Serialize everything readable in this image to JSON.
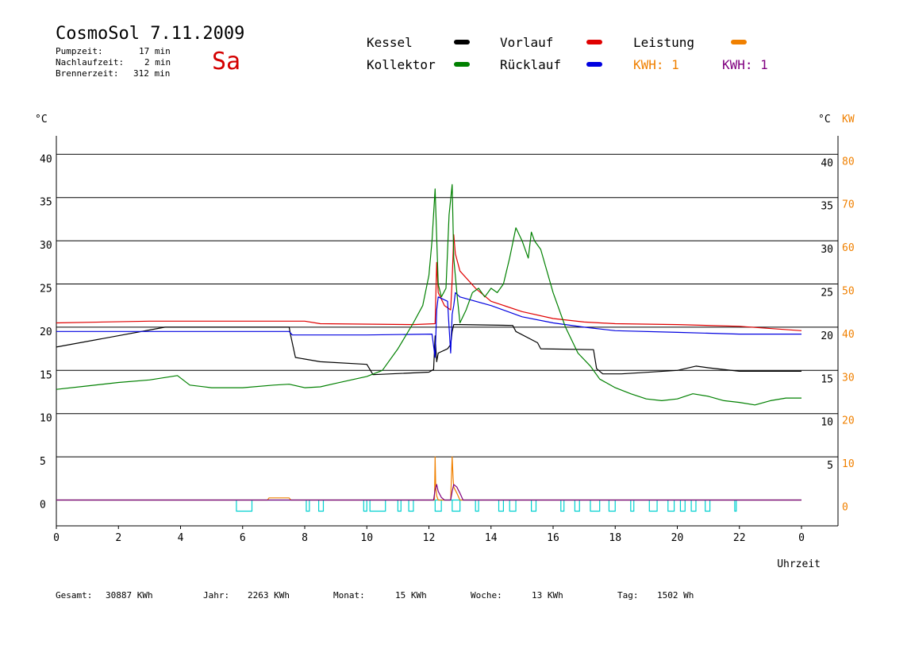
{
  "header": {
    "title": "CosmoSol 7.11.2009",
    "day": "Sa",
    "info": [
      {
        "label": "Pumpzeit:",
        "value": "17 min"
      },
      {
        "label": "Nachlaufzeit:",
        "value": "2 min"
      },
      {
        "label": "Brennerzeit:",
        "value": "312 min"
      }
    ]
  },
  "legend": [
    {
      "label": "Kessel",
      "color": "#000000"
    },
    {
      "label": "Vorlauf",
      "color": "#e00000"
    },
    {
      "label": "Leistung",
      "color": "#f08000"
    },
    {
      "label": "Kollektor",
      "color": "#008000"
    },
    {
      "label": "Rücklauf",
      "color": "#0000e0"
    }
  ],
  "kwh": [
    {
      "text": "KWH: 1",
      "color": "#f08000"
    },
    {
      "text": "KWH: 1",
      "color": "#800080"
    }
  ],
  "footer": [
    {
      "label": "Gesamt:",
      "value": "30887 KWh"
    },
    {
      "label": "Jahr:",
      "value": "2263 KWh"
    },
    {
      "label": "Monat:",
      "value": "15 KWh"
    },
    {
      "label": "Woche:",
      "value": "13 KWh"
    },
    {
      "label": "Tag:",
      "value": "1502 Wh"
    }
  ],
  "chart_data": {
    "type": "line",
    "xlabel": "Uhrzeit",
    "x_ticks": [
      "0",
      "2",
      "4",
      "6",
      "8",
      "10",
      "12",
      "14",
      "16",
      "18",
      "20",
      "22",
      "0"
    ],
    "xlim": [
      0,
      24
    ],
    "y_left_unit": "°C",
    "y_right_unit": "°C",
    "y_right2_unit": "KW",
    "ylim": [
      -3,
      45
    ],
    "y_left_ticks": [
      "0",
      "5",
      "10",
      "15",
      "20",
      "25",
      "30",
      "35",
      "40"
    ],
    "y_right_ticks": [
      "5",
      "10",
      "15",
      "20",
      "25",
      "30",
      "35",
      "40"
    ],
    "y_right2_ticks": [
      "0",
      "10",
      "20",
      "30",
      "40",
      "50",
      "60",
      "70",
      "80"
    ],
    "grid": true,
    "series": [
      {
        "name": "Kessel",
        "color": "#000000",
        "x": [
          0,
          3.5,
          7.5,
          7.55,
          7.7,
          8.5,
          10,
          10.2,
          12,
          12.15,
          12.2,
          12.25,
          12.3,
          12.6,
          12.7,
          12.75,
          12.8,
          13,
          14.7,
          14.8,
          15.5,
          15.6,
          17.3,
          17.4,
          17.6,
          18.2,
          20,
          20.6,
          21,
          22,
          24
        ],
        "y": [
          17.7,
          20.0,
          20.0,
          19.0,
          16.5,
          16.0,
          15.7,
          14.5,
          14.8,
          15.1,
          19.0,
          16.0,
          17.0,
          17.5,
          18.0,
          19.5,
          20.3,
          20.3,
          20.2,
          19.5,
          18.2,
          17.5,
          17.4,
          15.2,
          14.6,
          14.6,
          15.0,
          15.5,
          15.3,
          14.9,
          14.9
        ]
      },
      {
        "name": "Vorlauf",
        "color": "#e00000",
        "x": [
          0,
          3,
          8,
          8.5,
          11.5,
          12.2,
          12.25,
          12.3,
          12.5,
          12.7,
          12.75,
          12.8,
          12.85,
          13,
          13.5,
          14,
          15,
          16,
          17,
          18,
          20,
          22,
          24
        ],
        "y": [
          20.5,
          20.7,
          20.7,
          20.4,
          20.3,
          20.4,
          27.5,
          24.0,
          22.5,
          22.0,
          25.5,
          30.7,
          28.5,
          26.5,
          24.5,
          23.0,
          21.8,
          21.0,
          20.6,
          20.4,
          20.3,
          20.1,
          19.6
        ]
      },
      {
        "name": "Rücklauf",
        "color": "#0000e0",
        "x": [
          0,
          7.5,
          7.6,
          10,
          12.1,
          12.2,
          12.25,
          12.3,
          12.6,
          12.65,
          12.7,
          12.75,
          12.8,
          12.85,
          13,
          14,
          15,
          16,
          17,
          18,
          20,
          22,
          24
        ],
        "y": [
          19.5,
          19.5,
          19.1,
          19.1,
          19.2,
          16.5,
          22.0,
          23.5,
          23.0,
          20.0,
          17.0,
          21.5,
          22.5,
          24.0,
          23.5,
          22.5,
          21.2,
          20.5,
          20.0,
          19.6,
          19.4,
          19.2,
          19.2
        ]
      },
      {
        "name": "Kollektor",
        "color": "#008000",
        "x": [
          0,
          1,
          2,
          3,
          3.9,
          4.3,
          5,
          6,
          7,
          7.5,
          8,
          8.5,
          9,
          10,
          10.5,
          11,
          11.5,
          11.8,
          12,
          12.1,
          12.2,
          12.3,
          12.4,
          12.55,
          12.65,
          12.75,
          12.8,
          12.9,
          13,
          13.2,
          13.4,
          13.6,
          13.8,
          14,
          14.2,
          14.4,
          14.6,
          14.8,
          15,
          15.2,
          15.3,
          15.4,
          15.6,
          16,
          16.4,
          16.8,
          17.2,
          17.5,
          18,
          18.5,
          19,
          19.5,
          20,
          20.5,
          21,
          21.5,
          22,
          22.5,
          23,
          23.5,
          24
        ],
        "y": [
          12.8,
          13.2,
          13.6,
          13.9,
          14.4,
          13.3,
          13.0,
          13.0,
          13.3,
          13.4,
          13.0,
          13.1,
          13.5,
          14.3,
          15.0,
          17.5,
          20.5,
          22.5,
          26.0,
          30.0,
          36.0,
          25.0,
          23.5,
          24.5,
          33.0,
          36.5,
          28.0,
          24.0,
          20.5,
          22.0,
          24.0,
          24.5,
          23.5,
          24.5,
          24.0,
          25.0,
          28.0,
          31.5,
          30.0,
          28.0,
          31.0,
          30.0,
          29.0,
          24.0,
          20.0,
          17.0,
          15.5,
          14.0,
          13.0,
          12.3,
          11.7,
          11.5,
          11.7,
          12.3,
          12.0,
          11.5,
          11.3,
          11.0,
          11.5,
          11.8,
          11.8
        ]
      },
      {
        "name": "Leistung",
        "color": "#f08000",
        "x": [
          0,
          6.8,
          6.85,
          7.5,
          7.55,
          12.18,
          12.2,
          12.22,
          12.25,
          12.3,
          12.7,
          12.75,
          12.78,
          12.8,
          12.9,
          13,
          24
        ],
        "y": [
          0,
          0,
          0.25,
          0.25,
          0,
          0,
          5.0,
          1.5,
          0.5,
          0,
          0,
          5.0,
          2.5,
          1.5,
          0.8,
          0,
          0
        ]
      },
      {
        "name": "KWH",
        "color": "#800080",
        "x": [
          0,
          12.15,
          12.2,
          12.25,
          12.3,
          12.4,
          12.5,
          12.7,
          12.75,
          12.8,
          12.9,
          13,
          13.1,
          24
        ],
        "y": [
          0,
          0,
          1.2,
          1.8,
          1.0,
          0.3,
          0,
          0,
          1.0,
          1.8,
          1.5,
          0.8,
          0,
          0
        ]
      }
    ],
    "pump_pulses_x": [
      [
        5.8,
        6.3
      ],
      [
        8.05,
        8.15
      ],
      [
        8.45,
        8.6
      ],
      [
        9.9,
        10.0
      ],
      [
        10.1,
        10.6
      ],
      [
        11.0,
        11.1
      ],
      [
        11.35,
        11.5
      ],
      [
        12.2,
        12.4
      ],
      [
        12.75,
        13.0
      ],
      [
        13.5,
        13.6
      ],
      [
        14.25,
        14.4
      ],
      [
        14.6,
        14.8
      ],
      [
        15.3,
        15.45
      ],
      [
        16.25,
        16.35
      ],
      [
        16.7,
        16.85
      ],
      [
        17.2,
        17.5
      ],
      [
        17.8,
        18.0
      ],
      [
        18.5,
        18.6
      ],
      [
        19.1,
        19.35
      ],
      [
        19.7,
        19.9
      ],
      [
        20.1,
        20.25
      ],
      [
        20.45,
        20.6
      ],
      [
        20.9,
        21.05
      ],
      [
        21.85,
        21.9
      ]
    ]
  }
}
